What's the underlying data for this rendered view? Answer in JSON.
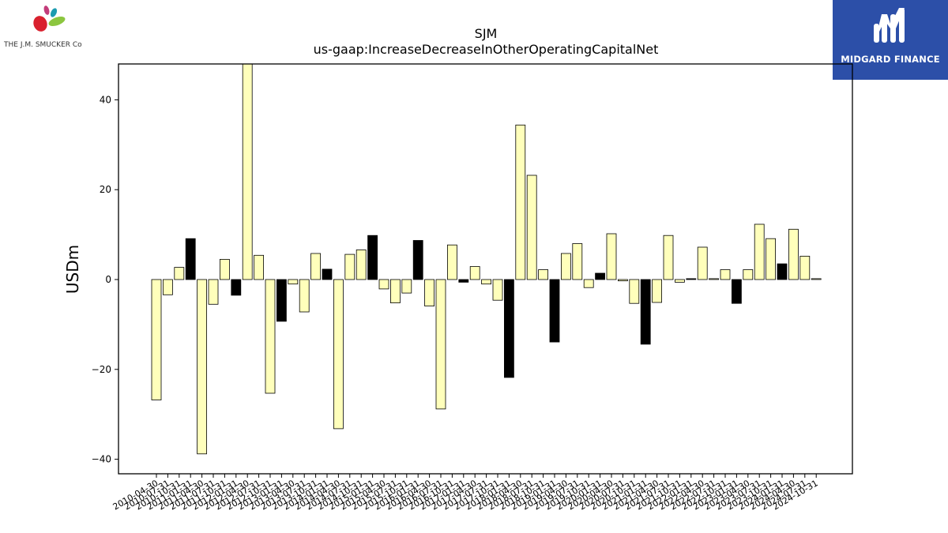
{
  "logos": {
    "left_brand": "THE J.M. SMUCKER Co",
    "right_brand": "MIDGARD FINANCE"
  },
  "chart_data": {
    "type": "bar",
    "title": "SJM",
    "subtitle": "us-gaap:IncreaseDecreaseInOtherOperatingCapitalNet",
    "xlabel": "",
    "ylabel": "USDm",
    "ylim": [
      -43.1,
      48.0
    ],
    "yticks": [
      -40,
      -20,
      0,
      20,
      40
    ],
    "ytick_labels": [
      "−40",
      "−20",
      "0",
      "20",
      "40"
    ],
    "grid": false,
    "legend": "none",
    "colors": {
      "default": "#ffffbb",
      "highlight": "#000000",
      "edge": "#000000"
    },
    "categories": [
      "2010-04-30",
      "2010-07-31",
      "2010-10-31",
      "2011-01-31",
      "2011-04-30",
      "2011-07-31",
      "2011-10-31",
      "2012-01-31",
      "2012-04-30",
      "2012-07-31",
      "2012-10-31",
      "2013-01-31",
      "2013-04-30",
      "2013-07-31",
      "2013-10-31",
      "2014-01-31",
      "2014-04-30",
      "2014-07-31",
      "2014-10-31",
      "2015-01-31",
      "2015-04-30",
      "2015-07-31",
      "2015-10-31",
      "2016-01-31",
      "2016-04-30",
      "2016-07-31",
      "2016-10-31",
      "2017-01-31",
      "2017-04-30",
      "2017-07-31",
      "2017-10-31",
      "2018-01-31",
      "2018-04-30",
      "2018-07-31",
      "2018-10-31",
      "2019-01-31",
      "2019-04-30",
      "2019-07-31",
      "2019-10-31",
      "2020-01-31",
      "2020-04-30",
      "2020-07-31",
      "2020-10-31",
      "2021-01-31",
      "2021-04-30",
      "2021-07-31",
      "2021-10-31",
      "2022-01-31",
      "2022-04-30",
      "2022-07-31",
      "2022-10-31",
      "2023-01-31",
      "2023-04-30",
      "2023-07-31",
      "2023-10-31",
      "2024-01-31",
      "2024-04-30",
      "2024-07-31",
      "2024-10-31"
    ],
    "values": [
      -26.8,
      -3.4,
      2.7,
      9.1,
      -38.8,
      -5.5,
      4.5,
      -3.5,
      48.0,
      5.4,
      -25.3,
      -9.3,
      -1.0,
      -7.2,
      5.8,
      2.3,
      -33.2,
      5.6,
      6.6,
      9.8,
      -2.1,
      -5.2,
      -3.0,
      8.7,
      -5.9,
      -28.8,
      7.7,
      -0.6,
      2.9,
      -1.0,
      -4.6,
      -21.8,
      34.4,
      23.2,
      2.2,
      -13.9,
      5.8,
      8.0,
      -1.8,
      1.4,
      10.2,
      -0.3,
      -5.3,
      -14.4,
      -5.1,
      9.8,
      -0.6,
      0.2,
      7.2,
      0.2,
      2.2,
      -5.3,
      2.2,
      12.3,
      9.1,
      3.5,
      11.2,
      5.2,
      0.2
    ],
    "highlight": [
      false,
      false,
      false,
      true,
      false,
      false,
      false,
      true,
      false,
      false,
      false,
      true,
      false,
      false,
      false,
      true,
      false,
      false,
      false,
      true,
      false,
      false,
      false,
      true,
      false,
      false,
      false,
      true,
      false,
      false,
      false,
      true,
      false,
      false,
      false,
      true,
      false,
      false,
      false,
      true,
      false,
      false,
      false,
      true,
      false,
      false,
      false,
      true,
      false,
      false,
      false,
      true,
      false,
      false,
      false,
      true,
      false,
      false,
      false
    ]
  }
}
